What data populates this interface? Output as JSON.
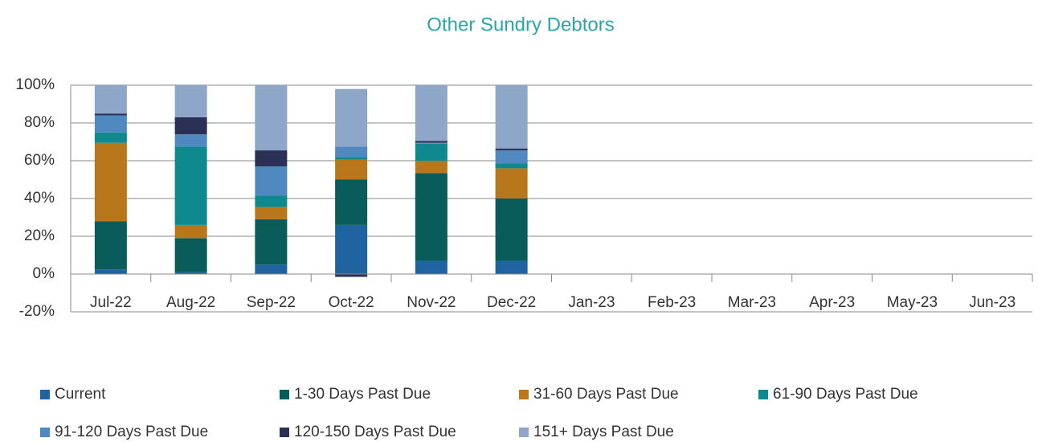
{
  "chart_data": {
    "type": "stacked_bar",
    "title": "Other Sundry Debtors",
    "categories": [
      "Jul-22",
      "Aug-22",
      "Sep-22",
      "Oct-22",
      "Nov-22",
      "Dec-22",
      "Jan-23",
      "Feb-23",
      "Mar-23",
      "Apr-23",
      "May-23",
      "Jun-23"
    ],
    "series": [
      {
        "name": "Current",
        "color": "#1f64a0",
        "values": [
          2.5,
          1,
          5,
          26,
          7,
          7,
          null,
          null,
          null,
          null,
          null,
          null
        ]
      },
      {
        "name": "1-30 Days Past Due",
        "color": "#0a5c5a",
        "values": [
          25.5,
          18,
          24,
          24,
          46.5,
          33,
          null,
          null,
          null,
          null,
          null,
          null
        ]
      },
      {
        "name": "31-60 Days Past Due",
        "color": "#b8771a",
        "values": [
          41.5,
          7,
          6.5,
          10.5,
          6.5,
          16,
          null,
          null,
          null,
          null,
          null,
          null
        ]
      },
      {
        "name": "61-90 Days Past Due",
        "color": "#0e8a8e",
        "values": [
          5.5,
          41.5,
          6,
          1.5,
          9,
          2.5,
          null,
          null,
          null,
          null,
          null,
          null
        ]
      },
      {
        "name": "91-120 Days Past Due",
        "color": "#4f89c0",
        "values": [
          9,
          6.5,
          15.5,
          5.5,
          0.5,
          7,
          null,
          null,
          null,
          null,
          null,
          null
        ]
      },
      {
        "name": "120-150 Days Past Due",
        "color": "#2b3154",
        "values": [
          1,
          9,
          8.5,
          -1.5,
          1,
          1,
          null,
          null,
          null,
          null,
          null,
          null
        ]
      },
      {
        "name": "151+ Days Past Due",
        "color": "#8ea6c8",
        "values": [
          15,
          17,
          34.5,
          30.5,
          29.5,
          33.5,
          null,
          null,
          null,
          null,
          null,
          null
        ]
      }
    ],
    "ylim": [
      -20,
      100
    ],
    "yticks": [
      {
        "value": -20,
        "label": "-20%"
      },
      {
        "value": 0,
        "label": "0%"
      },
      {
        "value": 20,
        "label": "20%"
      },
      {
        "value": 40,
        "label": "40%"
      },
      {
        "value": 60,
        "label": "60%"
      },
      {
        "value": 80,
        "label": "80%"
      },
      {
        "value": 100,
        "label": "100%"
      }
    ],
    "grid": true
  }
}
